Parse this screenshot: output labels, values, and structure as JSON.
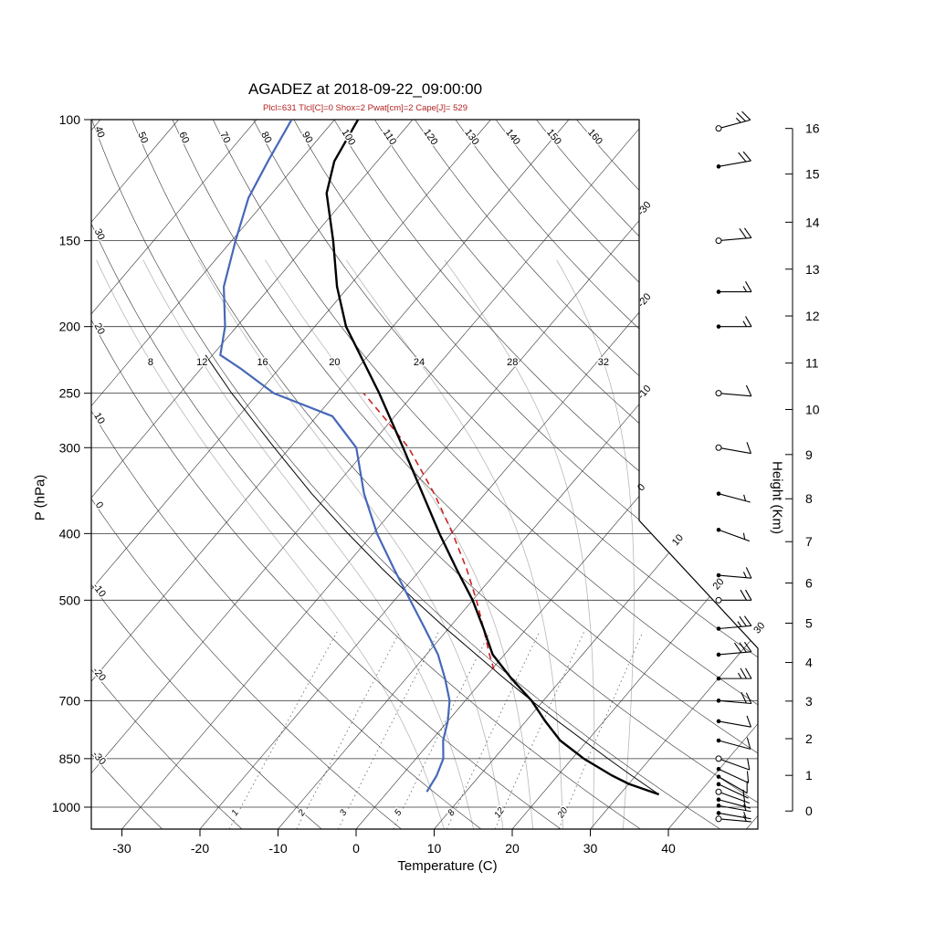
{
  "header": {
    "title": "AGADEZ at 2018-09-22_09:00:00",
    "params_line": "Plcl=631 Tlcl[C]=0 Shox=2 Pwat[cm]=2 Cape[J]= 529"
  },
  "axes": {
    "pressure_label": "P (hPa)",
    "temperature_label": "Temperature (C)",
    "height_label": "Height (Km)"
  },
  "chart_data": {
    "type": "skewt-logp",
    "station": "AGADEZ",
    "valid_time": "2018-09-22_09:00:00",
    "indices": {
      "Plcl_hPa": 631,
      "Tlcl_C": 0,
      "Showalter": 2,
      "Pwat_cm": 2,
      "Cape_J": 529
    },
    "pressure_ticks": [
      100,
      150,
      200,
      250,
      300,
      400,
      500,
      700,
      850,
      1000
    ],
    "temperature_ticks": [
      -30,
      -20,
      -10,
      0,
      10,
      20,
      30,
      40
    ],
    "isotherm_right_labels": [
      -30,
      -20,
      -10,
      0,
      10,
      20,
      30
    ],
    "dry_adiabats_c": [
      -30,
      -20,
      -10,
      0,
      10,
      20,
      30,
      40,
      50,
      60,
      70,
      80,
      90,
      100,
      110,
      120,
      130,
      140,
      150,
      160
    ],
    "moist_adiabats_c": [
      8,
      12,
      16,
      20,
      24,
      28,
      32
    ],
    "mixing_ratio_g_kg": [
      1,
      2,
      3,
      5,
      8,
      12,
      20
    ],
    "height_ticks_km": [
      0,
      1,
      2,
      3,
      4,
      5,
      6,
      7,
      8,
      9,
      10,
      11,
      12,
      13,
      14,
      15,
      16
    ],
    "std_atm_km_hpa": [
      [
        0,
        1013
      ],
      [
        1,
        899
      ],
      [
        2,
        795
      ],
      [
        3,
        701
      ],
      [
        4,
        616
      ],
      [
        5,
        540
      ],
      [
        6,
        472
      ],
      [
        7,
        411
      ],
      [
        8,
        356
      ],
      [
        9,
        307
      ],
      [
        10,
        264
      ],
      [
        11,
        226
      ],
      [
        12,
        193
      ],
      [
        13,
        165
      ],
      [
        14,
        141
      ],
      [
        15,
        120
      ],
      [
        16,
        103
      ]
    ],
    "sounding": {
      "temperature_p_t": [
        [
          958,
          35
        ],
        [
          925,
          30
        ],
        [
          900,
          27
        ],
        [
          850,
          21.5
        ],
        [
          800,
          16.5
        ],
        [
          750,
          12.5
        ],
        [
          700,
          8.5
        ],
        [
          650,
          3.5
        ],
        [
          600,
          -1.5
        ],
        [
          550,
          -5.5
        ],
        [
          500,
          -10
        ],
        [
          450,
          -15.5
        ],
        [
          400,
          -21.5
        ],
        [
          350,
          -28
        ],
        [
          300,
          -35.5
        ],
        [
          250,
          -44.5
        ],
        [
          200,
          -56
        ],
        [
          175,
          -61.5
        ],
        [
          150,
          -67
        ],
        [
          128,
          -73
        ],
        [
          115,
          -75.5
        ],
        [
          100,
          -77
        ]
      ],
      "dewpoint_p_t": [
        [
          950,
          5
        ],
        [
          900,
          4.5
        ],
        [
          850,
          3.5
        ],
        [
          800,
          1.5
        ],
        [
          750,
          0
        ],
        [
          700,
          -2
        ],
        [
          650,
          -5
        ],
        [
          600,
          -8.5
        ],
        [
          550,
          -13
        ],
        [
          500,
          -18
        ],
        [
          450,
          -23.5
        ],
        [
          400,
          -29.5
        ],
        [
          350,
          -35.5
        ],
        [
          300,
          -41.5
        ],
        [
          270,
          -48
        ],
        [
          250,
          -58
        ],
        [
          230,
          -65
        ],
        [
          220,
          -69
        ],
        [
          200,
          -71.5
        ],
        [
          175,
          -76
        ],
        [
          150,
          -79.5
        ],
        [
          130,
          -82.5
        ],
        [
          115,
          -84
        ],
        [
          100,
          -85.5
        ]
      ],
      "parcel_dry_p_t": [
        [
          958,
          35
        ],
        [
          900,
          29.5
        ],
        [
          850,
          24.6
        ],
        [
          800,
          19.5
        ],
        [
          750,
          14.1
        ],
        [
          700,
          8.5
        ],
        [
          650,
          2.6
        ],
        [
          631,
          0.3
        ],
        [
          600,
          -3.6
        ],
        [
          550,
          -10.3
        ],
        [
          500,
          -17.4
        ],
        [
          450,
          -25
        ],
        [
          400,
          -33.2
        ],
        [
          350,
          -42.2
        ],
        [
          300,
          -52
        ],
        [
          250,
          -63.4
        ],
        [
          220,
          -70.9
        ]
      ],
      "parcel_moist_p_t": [
        [
          631,
          0.3
        ],
        [
          600,
          -1.9
        ],
        [
          550,
          -5.5
        ],
        [
          500,
          -9.5
        ],
        [
          450,
          -14.2
        ],
        [
          400,
          -19.8
        ],
        [
          350,
          -26.5
        ],
        [
          300,
          -34.8
        ],
        [
          270,
          -41.5
        ],
        [
          250,
          -46.5
        ]
      ],
      "wind_p_dir_spd": [
        [
          103,
          75,
          25,
          1
        ],
        [
          117,
          80,
          20,
          0
        ],
        [
          150,
          85,
          20,
          1
        ],
        [
          178,
          90,
          15,
          0
        ],
        [
          200,
          90,
          15,
          0
        ],
        [
          250,
          95,
          10,
          1
        ],
        [
          300,
          100,
          10,
          1
        ],
        [
          350,
          105,
          5,
          0
        ],
        [
          395,
          110,
          5,
          0
        ],
        [
          460,
          95,
          15,
          0
        ],
        [
          500,
          90,
          20,
          1
        ],
        [
          550,
          85,
          25,
          0
        ],
        [
          600,
          85,
          30,
          0
        ],
        [
          650,
          90,
          25,
          0
        ],
        [
          700,
          95,
          20,
          0
        ],
        [
          750,
          100,
          10,
          0
        ],
        [
          800,
          105,
          10,
          0
        ],
        [
          850,
          110,
          10,
          1
        ],
        [
          880,
          115,
          8,
          0
        ],
        [
          903,
          120,
          8,
          0
        ],
        [
          926,
          115,
          5,
          0
        ],
        [
          950,
          110,
          5,
          1
        ],
        [
          975,
          105,
          5,
          0
        ],
        [
          995,
          100,
          5,
          0
        ],
        [
          1020,
          100,
          5,
          0
        ],
        [
          1040,
          95,
          5,
          1
        ]
      ]
    },
    "colors": {
      "temperature": "#000000",
      "dewpoint": "#4668b8",
      "parcel": "#cc2222",
      "grid_dark": "#333333",
      "grid_light": "#b8b8b8",
      "mixing": "#707070"
    }
  }
}
